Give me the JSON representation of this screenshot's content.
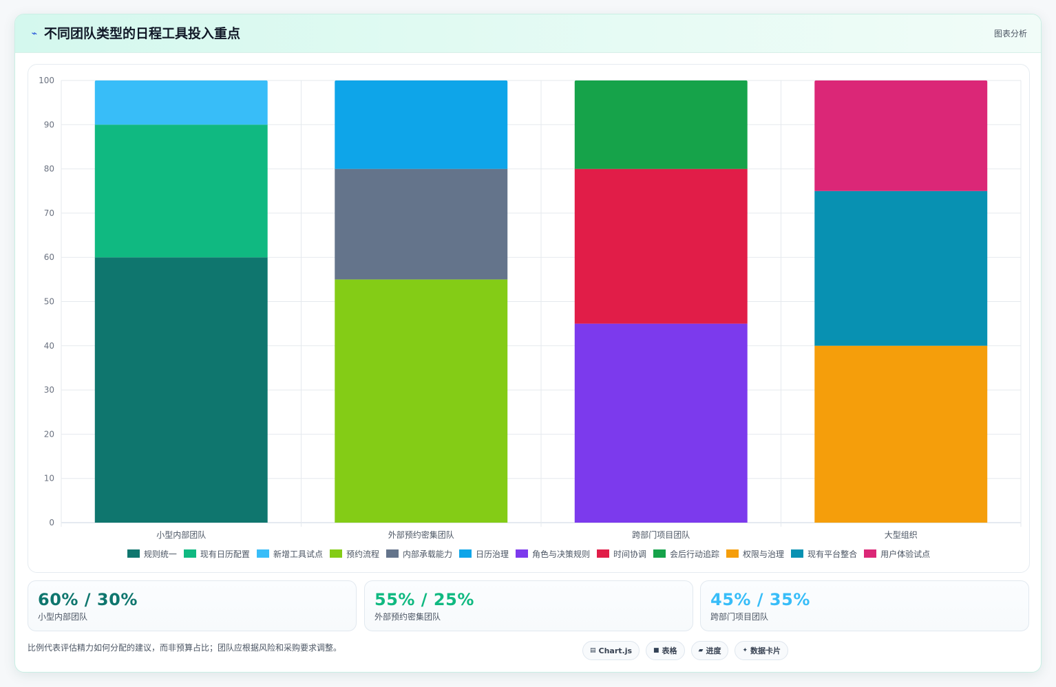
{
  "header": {
    "title": "不同团队类型的日程工具投入重点",
    "action_label": "图表分析",
    "logo_icon": "spark-icon"
  },
  "chart_data": {
    "type": "bar",
    "stacked": true,
    "title": "",
    "xlabel": "",
    "ylabel": "",
    "ylim": [
      0,
      100
    ],
    "yticks": [
      0,
      10,
      20,
      30,
      40,
      50,
      60,
      70,
      80,
      90,
      100
    ],
    "categories": [
      "小型内部团队",
      "外部预约密集团队",
      "跨部门项目团队",
      "大型组织"
    ],
    "grid": true,
    "legend_position": "bottom",
    "series": [
      {
        "name": "规则统一",
        "color": "#0f766e",
        "values": [
          60,
          null,
          null,
          null
        ]
      },
      {
        "name": "现有日历配置",
        "color": "#10b981",
        "values": [
          30,
          null,
          null,
          null
        ]
      },
      {
        "name": "新增工具试点",
        "color": "#38bdf8",
        "values": [
          10,
          null,
          null,
          null
        ]
      },
      {
        "name": "预约流程",
        "color": "#84cc16",
        "values": [
          null,
          55,
          null,
          null
        ]
      },
      {
        "name": "内部承载能力",
        "color": "#64748b",
        "values": [
          null,
          25,
          null,
          null
        ]
      },
      {
        "name": "日历治理",
        "color": "#0ea5e9",
        "values": [
          null,
          20,
          null,
          null
        ]
      },
      {
        "name": "角色与决策规则",
        "color": "#7c3aed",
        "values": [
          null,
          null,
          45,
          null
        ]
      },
      {
        "name": "时间协调",
        "color": "#e11d48",
        "values": [
          null,
          null,
          35,
          null
        ]
      },
      {
        "name": "会后行动追踪",
        "color": "#16a34a",
        "values": [
          null,
          null,
          20,
          null
        ]
      },
      {
        "name": "权限与治理",
        "color": "#f59e0b",
        "values": [
          null,
          null,
          null,
          40
        ]
      },
      {
        "name": "现有平台整合",
        "color": "#0891b2",
        "values": [
          null,
          null,
          null,
          35
        ]
      },
      {
        "name": "用户体验试点",
        "color": "#db2777",
        "values": [
          null,
          null,
          null,
          25
        ]
      }
    ]
  },
  "stats": [
    {
      "value": "60% / 30%",
      "label": "小型内部团队",
      "color": "#0f766e"
    },
    {
      "value": "55% / 25%",
      "label": "外部预约密集团队",
      "color": "#10b981"
    },
    {
      "value": "45% / 35%",
      "label": "跨部门项目团队",
      "color": "#38bdf8"
    }
  ],
  "footer": {
    "note": "比例代表评估精力如何分配的建议，而非预算占比；团队应根据风险和采购要求调整。",
    "chips": [
      {
        "icon": "▤",
        "icon_name": "chart-icon",
        "label": "Chart.js"
      },
      {
        "icon": "■",
        "icon_name": "table-icon",
        "label": "表格"
      },
      {
        "icon": "▰",
        "icon_name": "progress-icon",
        "label": "进度"
      },
      {
        "icon": "✦",
        "icon_name": "sparkle-icon",
        "label": "数据卡片"
      }
    ]
  }
}
